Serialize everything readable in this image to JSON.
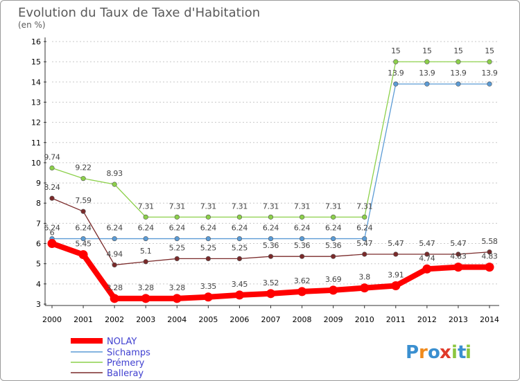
{
  "chart_data": {
    "type": "line",
    "title": "Evolution du Taux de Taxe d'Habitation",
    "subtitle": "(en %)",
    "x": [
      2000,
      2001,
      2002,
      2003,
      2004,
      2005,
      2006,
      2007,
      2008,
      2009,
      2010,
      2011,
      2012,
      2013,
      2014
    ],
    "ylim": [
      3,
      16
    ],
    "yticks": [
      3,
      4,
      5,
      6,
      7,
      8,
      9,
      10,
      11,
      12,
      13,
      14,
      15,
      16
    ],
    "grid": "horizontal dashed",
    "legend_position": "bottom-left",
    "series": [
      {
        "name": "NOLAY",
        "color": "#ff0000",
        "values": [
          6,
          5.45,
          3.28,
          3.28,
          3.28,
          3.35,
          3.45,
          3.52,
          3.62,
          3.69,
          3.8,
          3.91,
          4.74,
          4.83,
          4.83
        ],
        "labels": [
          "6",
          "5.45",
          "3.28",
          "3.28",
          "3.28",
          "3.35",
          "3.45",
          "3.52",
          "3.62",
          "3.69",
          "3.8",
          "3.91",
          "4.74",
          "4.83",
          "4.83"
        ]
      },
      {
        "name": "Sichamps",
        "color": "#5b9bd5",
        "values": [
          6.24,
          6.24,
          6.24,
          6.24,
          6.24,
          6.24,
          6.24,
          6.24,
          6.24,
          6.24,
          6.24,
          13.9,
          13.9,
          13.9,
          13.9
        ],
        "labels": [
          "6.24",
          "6.24",
          "6.24",
          "6.24",
          "6.24",
          "6.24",
          "6.24",
          "6.24",
          "6.24",
          "6.24",
          "6.24",
          "13.9",
          "13.9",
          "13.9",
          "13.9"
        ]
      },
      {
        "name": "Prémery",
        "color": "#8cd04a",
        "values": [
          9.74,
          9.22,
          8.93,
          7.31,
          7.31,
          7.31,
          7.31,
          7.31,
          7.31,
          7.31,
          7.31,
          15,
          15,
          15,
          15
        ],
        "labels": [
          "9.74",
          "9.22",
          "8.93",
          "7.31",
          "7.31",
          "7.31",
          "7.31",
          "7.31",
          "7.31",
          "7.31",
          "7.31",
          "15",
          "15",
          "15",
          "15"
        ]
      },
      {
        "name": "Balleray",
        "color": "#7a2a2a",
        "values": [
          8.24,
          7.59,
          4.94,
          5.1,
          5.25,
          5.25,
          5.25,
          5.36,
          5.36,
          5.36,
          5.47,
          5.47,
          5.47,
          5.47,
          5.58
        ],
        "labels": [
          "8.24",
          "7.59",
          "4.94",
          "5.1",
          "5.25",
          "5.25",
          "5.25",
          "5.36",
          "5.36",
          "5.36",
          "5.47",
          "5.47",
          "5.47",
          "5.47",
          "5.58"
        ]
      }
    ]
  },
  "legend": {
    "items": [
      "NOLAY",
      "Sichamps",
      "Prémery",
      "Balleray"
    ],
    "text_color": "#4040d0"
  },
  "logo": {
    "letters": [
      "P",
      "r",
      "o",
      "x",
      "i",
      "t",
      "i"
    ],
    "colors": [
      "#3a8fd0",
      "#f08a1c",
      "#3a8fd0",
      "#e03a2a",
      "#8cc63f",
      "#3a8fd0",
      "#8cc63f"
    ]
  }
}
